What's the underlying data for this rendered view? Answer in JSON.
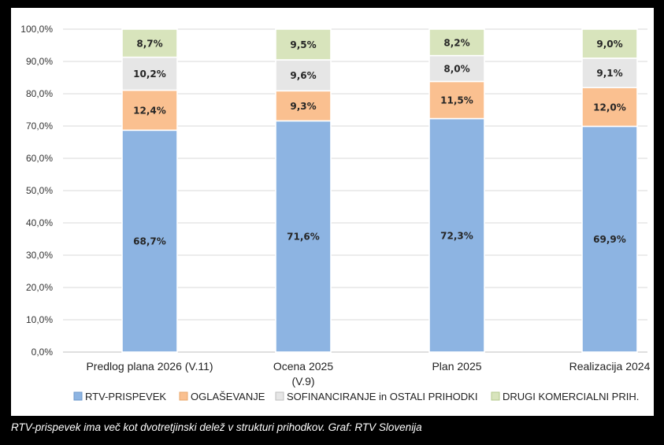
{
  "caption": "RTV-prispevek ima več kot dvotretjinski delež v strukturi prihodkov. Graf: RTV Slovenija",
  "chart_data": {
    "type": "bar",
    "stacked": true,
    "percent": true,
    "ylim": [
      0,
      100
    ],
    "yticks": [
      0,
      10,
      20,
      30,
      40,
      50,
      60,
      70,
      80,
      90,
      100
    ],
    "ytick_labels": [
      "0,0%",
      "10,0%",
      "20,0%",
      "30,0%",
      "40,0%",
      "50,0%",
      "60,0%",
      "70,0%",
      "80,0%",
      "90,0%",
      "100,0%"
    ],
    "grid": true,
    "legend_position": "bottom",
    "categories": [
      [
        "Predlog plana 2026 (V.11)"
      ],
      [
        "Ocena 2025",
        "(V.9)"
      ],
      [
        "Plan 2025"
      ],
      [
        "Realizacija 2024"
      ]
    ],
    "series": [
      {
        "name": "RTV-PRISPEVEK",
        "color": "#8DB4E2",
        "edge": "#6D98CB",
        "values": [
          68.7,
          71.6,
          72.3,
          69.9
        ],
        "labels": [
          "68,7%",
          "71,6%",
          "72,3%",
          "69,9%"
        ]
      },
      {
        "name": "OGLAŠEVANJE",
        "color": "#FAC090",
        "edge": "#E8A86E",
        "values": [
          12.4,
          9.3,
          11.5,
          12.0
        ],
        "labels": [
          "12,4%",
          "9,3%",
          "11,5%",
          "12,0%"
        ]
      },
      {
        "name": "SOFINANCIRANJE in OSTALI PRIHODKI",
        "color": "#E6E6E6",
        "edge": "#BFBFBF",
        "values": [
          10.2,
          9.6,
          8.0,
          9.1
        ],
        "labels": [
          "10,2%",
          "9,6%",
          "8,0%",
          "9,1%"
        ]
      },
      {
        "name": "DRUGI KOMERCIALNI PRIH.",
        "color": "#D8E4BC",
        "edge": "#B5C98E",
        "values": [
          8.7,
          9.5,
          8.2,
          9.0
        ],
        "labels": [
          "8,7%",
          "9,5%",
          "8,2%",
          "9,0%"
        ]
      }
    ]
  }
}
